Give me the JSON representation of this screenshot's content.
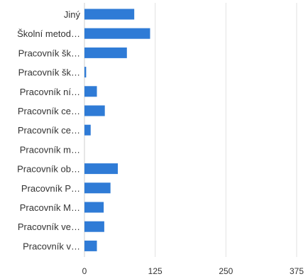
{
  "chart_data": {
    "type": "bar",
    "orientation": "horizontal",
    "categories": [
      "Jiný",
      "Školní metod…",
      "Pracovník šk…",
      "Pracovník šk…",
      "Pracovník ní…",
      "Pracovník ce…",
      "Pracovník ce…",
      "Pracovník m…",
      "Pracovník ob…",
      "Pracovník P…",
      "Pracovník M…",
      "Pracovník ve…",
      "Pracovník v…"
    ],
    "values": [
      88,
      116,
      75,
      3,
      22,
      36,
      11,
      0,
      59,
      46,
      34,
      35,
      22
    ],
    "xlim": [
      0,
      375
    ],
    "xticks": [
      0,
      125,
      250,
      375
    ],
    "xtick_labels": [
      "0",
      "125",
      "250",
      "375"
    ],
    "grid": true,
    "legend": false,
    "colors": {
      "bar": "#2f7bd6",
      "grid": "#e2e2e2",
      "label": "#333333",
      "axis": "#333333"
    }
  }
}
